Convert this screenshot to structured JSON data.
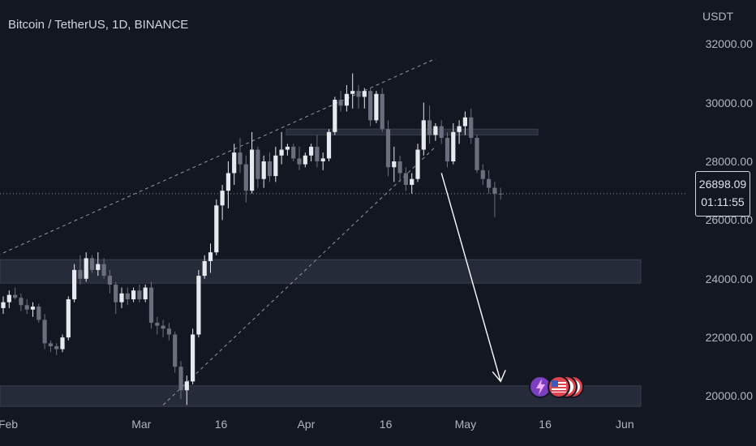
{
  "header": {
    "title": "Bitcoin / TetherUS, 1D, BINANCE"
  },
  "price_axis": {
    "currency": "USDT",
    "current_price": "26898.09",
    "countdown": "01:11:55"
  },
  "colors": {
    "background": "#131722",
    "candle_up": "#e7e9ef",
    "candle_down": "#6b6f7d",
    "zone": "#2a2f3d",
    "channel": "#9598a1",
    "arrow": "#ffffff",
    "event_lightning": "#7b3fbf",
    "event_flag": "#e0444c"
  },
  "events": [
    "lightning-icon",
    "us-flag-icon",
    "us-flag-icon",
    "us-flag-icon"
  ],
  "chart_data": {
    "type": "candlestick",
    "title": "Bitcoin / TetherUS, 1D, BINANCE",
    "ylabel": "USDT",
    "ylim": [
      18300,
      33500
    ],
    "y_ticks": [
      20000,
      22000,
      24000,
      26000,
      28000,
      30000,
      32000
    ],
    "x_ticks": [
      "Feb",
      "Mar",
      "16",
      "Apr",
      "16",
      "May",
      "16",
      "Jun"
    ],
    "current_price": 26898.09,
    "zones": [
      {
        "from": 28900,
        "to": 29100
      },
      {
        "from": 23850,
        "to": 24650
      },
      {
        "from": 19650,
        "to": 20350
      }
    ],
    "ohlc": [
      [
        23000,
        23400,
        22800,
        23200
      ],
      [
        23200,
        23600,
        23000,
        23450
      ],
      [
        23450,
        23700,
        23300,
        23350
      ],
      [
        23350,
        23500,
        22900,
        23100
      ],
      [
        23100,
        23300,
        22800,
        22950
      ],
      [
        22950,
        23200,
        22700,
        23050
      ],
      [
        23050,
        23150,
        22500,
        22600
      ],
      [
        22600,
        22800,
        21600,
        21800
      ],
      [
        21800,
        21900,
        21500,
        21700
      ],
      [
        21700,
        21800,
        21400,
        21600
      ],
      [
        21600,
        22100,
        21500,
        22000
      ],
      [
        22000,
        23400,
        21900,
        23300
      ],
      [
        23300,
        24500,
        23200,
        24300
      ],
      [
        24300,
        24800,
        23800,
        24000
      ],
      [
        24000,
        24900,
        23900,
        24700
      ],
      [
        24700,
        24800,
        24200,
        24300
      ],
      [
        24300,
        24900,
        24100,
        24500
      ],
      [
        24500,
        24700,
        24000,
        24100
      ],
      [
        24100,
        24300,
        23500,
        23800
      ],
      [
        23800,
        23900,
        22800,
        23200
      ],
      [
        23200,
        23700,
        23000,
        23500
      ],
      [
        23500,
        23700,
        23100,
        23300
      ],
      [
        23300,
        23700,
        23200,
        23600
      ],
      [
        23600,
        23800,
        23200,
        23300
      ],
      [
        23300,
        23800,
        23200,
        23700
      ],
      [
        23700,
        23900,
        22300,
        22500
      ],
      [
        22500,
        22700,
        22100,
        22400
      ],
      [
        22400,
        22600,
        22000,
        22300
      ],
      [
        22300,
        22500,
        21900,
        22100
      ],
      [
        22100,
        22200,
        20800,
        21000
      ],
      [
        21000,
        21200,
        19900,
        20200
      ],
      [
        20200,
        20700,
        19700,
        20500
      ],
      [
        20500,
        22300,
        20400,
        22100
      ],
      [
        22100,
        24300,
        22000,
        24100
      ],
      [
        24100,
        24800,
        24000,
        24600
      ],
      [
        24600,
        25200,
        24200,
        24900
      ],
      [
        24900,
        26700,
        24800,
        26500
      ],
      [
        26500,
        27200,
        26000,
        27000
      ],
      [
        27000,
        28000,
        26400,
        27600
      ],
      [
        27600,
        28600,
        27200,
        28300
      ],
      [
        28300,
        28800,
        27600,
        27900
      ],
      [
        27900,
        28200,
        26600,
        27000
      ],
      [
        27000,
        29000,
        26900,
        28400
      ],
      [
        28400,
        28500,
        27100,
        27400
      ],
      [
        27400,
        28200,
        27100,
        28000
      ],
      [
        28000,
        28300,
        27300,
        27500
      ],
      [
        27500,
        28500,
        27300,
        28200
      ],
      [
        28200,
        29000,
        27900,
        28400
      ],
      [
        28400,
        28600,
        28200,
        28500
      ],
      [
        28500,
        28600,
        28000,
        28100
      ],
      [
        28100,
        28500,
        27700,
        27900
      ],
      [
        27900,
        28300,
        27800,
        28200
      ],
      [
        28200,
        28600,
        28000,
        28500
      ],
      [
        28500,
        28900,
        27800,
        28000
      ],
      [
        28000,
        28300,
        27700,
        28100
      ],
      [
        28100,
        29100,
        28000,
        29000
      ],
      [
        29000,
        30200,
        28900,
        30100
      ],
      [
        30100,
        30400,
        29700,
        29900
      ],
      [
        29900,
        30600,
        29700,
        30300
      ],
      [
        30300,
        31000,
        29800,
        30400
      ],
      [
        30400,
        30600,
        29800,
        30200
      ],
      [
        30200,
        30500,
        29800,
        30400
      ],
      [
        30400,
        30500,
        29200,
        29400
      ],
      [
        29400,
        30400,
        29300,
        30300
      ],
      [
        30300,
        30500,
        29000,
        29100
      ],
      [
        29100,
        29400,
        27500,
        27800
      ],
      [
        27800,
        28500,
        27300,
        28000
      ],
      [
        28000,
        28200,
        27300,
        27600
      ],
      [
        27600,
        27800,
        27000,
        27200
      ],
      [
        27200,
        27600,
        26900,
        27400
      ],
      [
        27400,
        28600,
        27300,
        28400
      ],
      [
        28400,
        30000,
        28200,
        29400
      ],
      [
        29400,
        29900,
        28600,
        28900
      ],
      [
        28900,
        29300,
        28700,
        29200
      ],
      [
        29200,
        29400,
        28600,
        28800
      ],
      [
        28800,
        29000,
        27800,
        28000
      ],
      [
        28000,
        29300,
        27900,
        29000
      ],
      [
        29000,
        29400,
        28600,
        29200
      ],
      [
        29200,
        29700,
        28900,
        29500
      ],
      [
        29500,
        29800,
        28600,
        28800
      ],
      [
        28800,
        28900,
        27600,
        27700
      ],
      [
        27700,
        27900,
        27200,
        27400
      ],
      [
        27400,
        27700,
        26900,
        27100
      ],
      [
        27100,
        27300,
        26100,
        26900
      ],
      [
        26900,
        27100,
        26700,
        26898
      ]
    ],
    "annotations": {
      "channel_upper": [
        [
          -2,
          24700
        ],
        [
          73,
          31500
        ]
      ],
      "channel_lower": [
        [
          27,
          19700
        ],
        [
          73,
          28500
        ]
      ],
      "projection_path": [
        [
          74,
          27600
        ],
        [
          75,
          26900
        ],
        [
          84,
          20500
        ]
      ]
    }
  }
}
